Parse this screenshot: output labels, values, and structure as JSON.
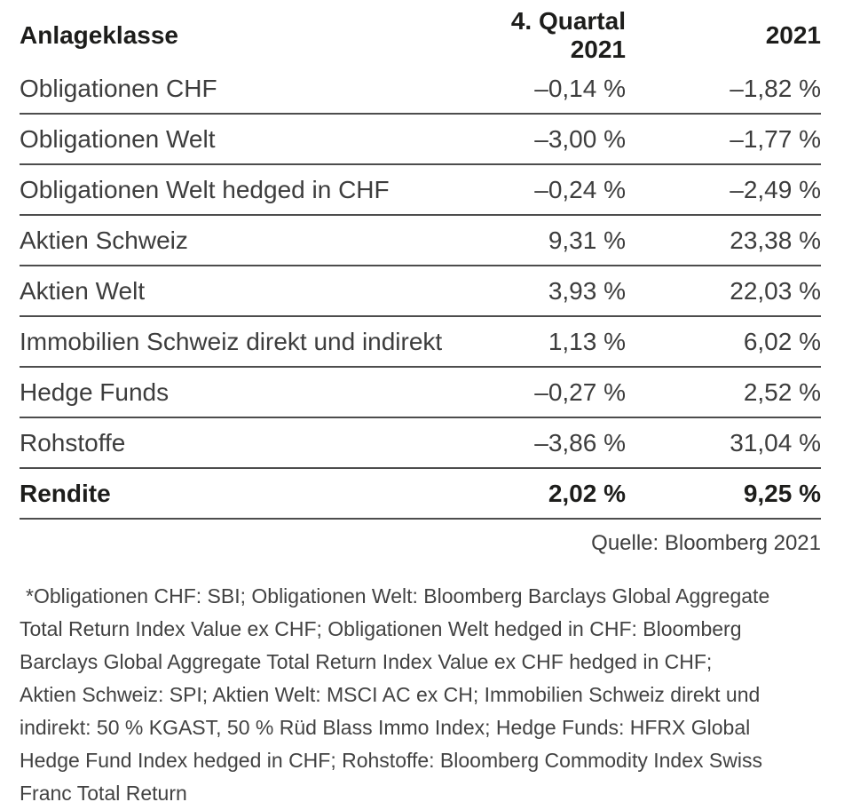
{
  "table": {
    "columns": {
      "label": "Anlageklasse",
      "q4": "4. Quartal 2021",
      "year": "2021"
    },
    "rows": [
      {
        "label": "Obligationen CHF",
        "q4": "–0,14 %",
        "year": "–1,82 %"
      },
      {
        "label": "Obligationen Welt",
        "q4": "–3,00 %",
        "year": "–1,77 %"
      },
      {
        "label": "Obligationen Welt hedged in CHF",
        "q4": "–0,24 %",
        "year": "–2,49 %"
      },
      {
        "label": "Aktien Schweiz",
        "q4": "9,31 %",
        "year": "23,38 %"
      },
      {
        "label": "Aktien Welt",
        "q4": "3,93 %",
        "year": "22,03 %"
      },
      {
        "label": "Immobilien Schweiz direkt und indirekt",
        "q4": "1,13 %",
        "year": "6,02 %"
      },
      {
        "label": "Hedge Funds",
        "q4": "–0,27 %",
        "year": "2,52 %"
      },
      {
        "label": "Rohstoffe",
        "q4": "–3,86 %",
        "year": "31,04 %"
      }
    ],
    "total": {
      "label": "Rendite",
      "q4": "2,02 %",
      "year": "9,25 %"
    }
  },
  "source": "Quelle: Bloomberg 2021",
  "footnote": {
    "lines": [
      "*Obligationen CHF: SBI; Obligationen Welt: Bloomberg Barclays Global Aggregate",
      "Total Return Index Value ex CHF; Obligationen Welt hedged in CHF: Bloomberg",
      "Barclays Global Aggregate Total Return Index Value ex CHF hedged in CHF;",
      "Aktien Schweiz: SPI; Aktien Welt: MSCI AC ex CH; Immobilien Schweiz direkt und",
      "indirekt: 50 % KGAST, 50 % Rüd Blass Immo Index; Hedge Funds: HFRX Global",
      "Hedge Fund Index hedged in CHF; Rohstoffe: Bloomberg Commodity Index Swiss",
      "Franc Total Return"
    ],
    "full_text": "*Obligationen CHF: SBI; Obligationen Welt: Bloomberg Barclays Global Aggregate Total Return Index Value ex CHF; Obligationen Welt hedged in CHF: Bloomberg Barclays Global Aggregate Total Return Index Value ex CHF hedged in CHF; Aktien Schweiz: SPI; Aktien Welt: MSCI AC ex CH; Immobilien Schweiz direkt und indirekt: 50 % KGAST, 50 % Rüd Blass Immo Index; Hedge Funds: HFRX Global Hedge Fund Index hedged in CHF; Rohstoffe: Bloomberg Commodity Index Swiss Franc Total Return"
  },
  "colors": {
    "background": "#ffffff",
    "text": "#3d3d3d",
    "bold_text": "#1d1d1b",
    "rule": "#4d4d4d"
  },
  "chart_data": {
    "type": "table",
    "title": "Anlageklassen Renditen 2021",
    "categories": [
      "Obligationen CHF",
      "Obligationen Welt",
      "Obligationen Welt hedged in CHF",
      "Aktien Schweiz",
      "Aktien Welt",
      "Immobilien Schweiz direkt und indirekt",
      "Hedge Funds",
      "Rohstoffe",
      "Rendite"
    ],
    "series": [
      {
        "name": "4. Quartal 2021 (%)",
        "values": [
          -0.14,
          -3.0,
          -0.24,
          9.31,
          3.93,
          1.13,
          -0.27,
          -3.86,
          2.02
        ]
      },
      {
        "name": "2021 (%)",
        "values": [
          -1.82,
          -1.77,
          -2.49,
          23.38,
          22.03,
          6.02,
          2.52,
          31.04,
          9.25
        ]
      }
    ]
  }
}
